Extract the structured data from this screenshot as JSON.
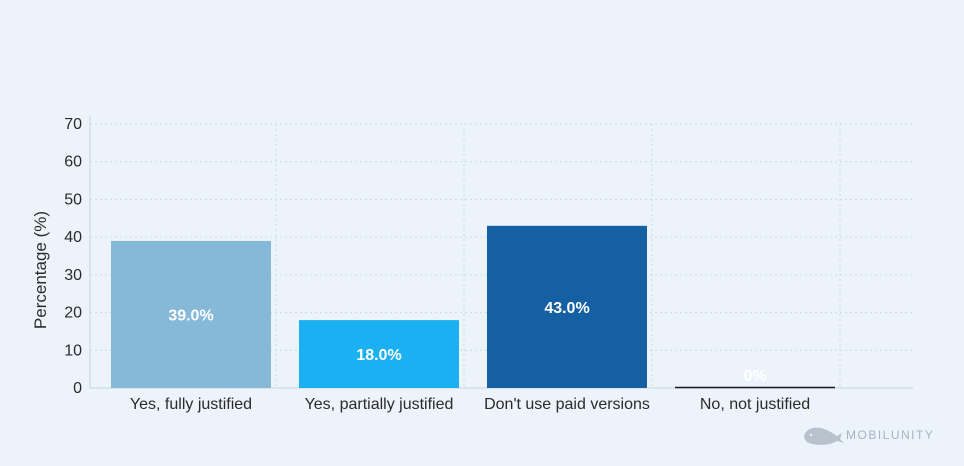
{
  "chart_data": {
    "type": "bar",
    "categories": [
      "Yes, fully justified",
      "Yes, partially justified",
      "Don't use paid versions",
      "No, not justified"
    ],
    "values": [
      39.0,
      18.0,
      43.0,
      0
    ],
    "data_labels": [
      "39.0%",
      "18.0%",
      "43.0%",
      "0%"
    ],
    "colors": [
      "#86b8d8",
      "#1ab0f2",
      "#1560a3",
      "#1a1a1a"
    ],
    "title": "",
    "xlabel": "",
    "ylabel": "Percentage (%)",
    "ylim": [
      0,
      70
    ],
    "yticks": [
      0,
      10,
      20,
      30,
      40,
      50,
      60,
      70
    ],
    "grid": true
  },
  "watermark": {
    "text": "MOBILUNITY"
  }
}
